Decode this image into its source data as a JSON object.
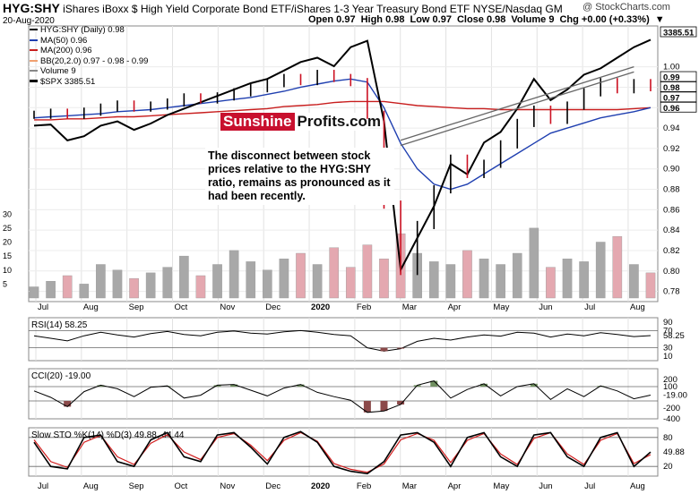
{
  "header": {
    "ticker": "HYG:SHY",
    "description": "iShares iBoxx $ High Yield Corporate Bond ETF/iShares 1-3 Year Treasury Bond ETF NYSE/Nasdaq GM",
    "credit": "@ StockCharts.com",
    "date": "20-Aug-2020",
    "open": "Open 0.97",
    "high": "High 0.98",
    "low": "Low 0.97",
    "close": "Close 0.98",
    "volume": "Volume 9",
    "chg": "Chg +0.00 (+0.33%)"
  },
  "legend": {
    "main": "HYG:SHY (Daily) 0.98",
    "ma50": "MA(50) 0.96",
    "ma200": "MA(200) 0.96",
    "bb": "BB(20,2.0) 0.97 - 0.98 - 0.99",
    "volume": "Volume 9",
    "spx": "$SPX 3385.51"
  },
  "watermark": {
    "part1": "Sunshine",
    "part2": "Profits.com"
  },
  "annotation": "The disconnect between stock prices relative to the HYG:SHY ratio, remains as pronounced as it had been recently.",
  "colors": {
    "ma50": "#1f3fb0",
    "ma200": "#c81e1e",
    "bb": "#f0a070",
    "up": "#000000",
    "down": "#cc1122",
    "volume": "#a8a8a8",
    "volume_red": "#e4a8b0",
    "rsi_neg": "#8b4a4a",
    "cci_pos": "#6f8f5f"
  },
  "chart_data": [
    {
      "type": "line",
      "name": "price_panel",
      "x_ticks": [
        "Jul",
        "Aug",
        "Sep",
        "Oct",
        "Nov",
        "Dec",
        "2020",
        "Feb",
        "Mar",
        "Apr",
        "May",
        "Jun",
        "Jul",
        "Aug"
      ],
      "ylim": [
        0.77,
        1.04
      ],
      "y_ticks": [
        "1.00",
        "0.98",
        "0.96",
        "0.94",
        "0.92",
        "0.90",
        "0.88",
        "0.86",
        "0.84",
        "0.82",
        "0.80",
        "0.78"
      ],
      "volume_ticks": [
        "30",
        "25",
        "20",
        "15",
        "10",
        "5"
      ],
      "last_labels": {
        "spx": "3385.51",
        "bb_upper": "0.99",
        "close": "0.98",
        "bb_lower": "0.97",
        "ma": "0.96"
      },
      "series": [
        {
          "name": "HYG:SHY",
          "values": [
            0.953,
            0.955,
            0.953,
            0.956,
            0.96,
            0.963,
            0.96,
            0.962,
            0.965,
            0.97,
            0.968,
            0.971,
            0.975,
            0.979,
            0.984,
            0.989,
            0.986,
            0.993,
            0.989,
            0.985,
            0.953,
            0.865,
            0.8,
            0.845,
            0.88,
            0.91,
            0.895,
            0.905,
            0.924,
            0.945,
            0.958,
            0.948,
            0.962,
            0.975,
            0.985,
            0.978,
            0.984,
            0.98
          ]
        },
        {
          "name": "$SPX",
          "values": [
            2980,
            2985,
            2910,
            2930,
            2980,
            3000,
            2960,
            2990,
            3030,
            3060,
            3090,
            3120,
            3150,
            3180,
            3200,
            3240,
            3280,
            3300,
            3260,
            3350,
            3380,
            3000,
            2300,
            2450,
            2600,
            2800,
            2750,
            2900,
            2950,
            3060,
            3200,
            3100,
            3150,
            3220,
            3250,
            3300,
            3350,
            3385
          ]
        },
        {
          "name": "MA(50)",
          "values": [
            0.95,
            0.951,
            0.952,
            0.953,
            0.954,
            0.956,
            0.957,
            0.958,
            0.96,
            0.962,
            0.964,
            0.966,
            0.968,
            0.97,
            0.973,
            0.976,
            0.98,
            0.983,
            0.986,
            0.988,
            0.985,
            0.96,
            0.925,
            0.9,
            0.885,
            0.88,
            0.885,
            0.895,
            0.905,
            0.915,
            0.925,
            0.935,
            0.94,
            0.945,
            0.95,
            0.953,
            0.956,
            0.96
          ]
        },
        {
          "name": "MA(200)",
          "values": [
            0.948,
            0.948,
            0.949,
            0.949,
            0.95,
            0.951,
            0.951,
            0.952,
            0.953,
            0.954,
            0.955,
            0.956,
            0.957,
            0.958,
            0.959,
            0.961,
            0.962,
            0.963,
            0.965,
            0.966,
            0.966,
            0.966,
            0.964,
            0.962,
            0.961,
            0.96,
            0.959,
            0.959,
            0.958,
            0.958,
            0.958,
            0.958,
            0.958,
            0.958,
            0.958,
            0.958,
            0.959,
            0.96
          ]
        }
      ],
      "volume": [
        4,
        6,
        8,
        5,
        12,
        10,
        7,
        9,
        11,
        15,
        8,
        12,
        17,
        13,
        10,
        14,
        16,
        12,
        18,
        11,
        19,
        14,
        23,
        16,
        13,
        12,
        17,
        14,
        12,
        16,
        25,
        11,
        14,
        13,
        20,
        22,
        12,
        9
      ]
    },
    {
      "type": "line",
      "name": "RSI(14)",
      "label": "RSI(14) 58.25",
      "ylim": [
        0,
        100
      ],
      "y_ticks": [
        "90",
        "70",
        "58.25",
        "30",
        "10"
      ],
      "ref_lines": [
        70,
        30
      ],
      "values": [
        58,
        52,
        46,
        58,
        66,
        60,
        55,
        63,
        68,
        61,
        58,
        66,
        69,
        64,
        62,
        67,
        70,
        66,
        61,
        58,
        30,
        22,
        28,
        45,
        52,
        48,
        55,
        60,
        57,
        66,
        64,
        55,
        62,
        58,
        65,
        61,
        56,
        58.25
      ]
    },
    {
      "type": "line",
      "name": "CCI(20)",
      "label": "CCI(20) -19.00",
      "ylim": [
        -350,
        350
      ],
      "y_ticks": [
        "200",
        "100",
        "-19.00",
        "-200",
        "-400"
      ],
      "ref_lines": [
        100,
        -100
      ],
      "values": [
        40,
        -50,
        -180,
        30,
        120,
        70,
        -40,
        90,
        110,
        -60,
        -20,
        120,
        130,
        50,
        -30,
        80,
        130,
        20,
        -40,
        -90,
        -260,
        -240,
        -150,
        120,
        180,
        -60,
        60,
        140,
        -30,
        100,
        140,
        -80,
        70,
        -40,
        110,
        40,
        -70,
        -19
      ]
    },
    {
      "type": "line",
      "name": "Slow STO",
      "label": "Slow STO %K(14) %D(3) 49.88, 44.44",
      "ylim": [
        0,
        100
      ],
      "y_ticks": [
        "80",
        "49.88",
        "20"
      ],
      "ref_lines": [
        80,
        20
      ],
      "series": [
        {
          "name": "%K(14)",
          "values": [
            70,
            20,
            15,
            80,
            85,
            30,
            20,
            75,
            90,
            40,
            30,
            85,
            90,
            60,
            25,
            80,
            92,
            70,
            20,
            10,
            5,
            30,
            85,
            90,
            70,
            20,
            80,
            90,
            40,
            20,
            85,
            90,
            40,
            20,
            80,
            90,
            20,
            49.88
          ]
        },
        {
          "name": "%D(3)",
          "values": [
            75,
            30,
            18,
            70,
            84,
            40,
            24,
            68,
            86,
            50,
            34,
            80,
            88,
            64,
            32,
            74,
            90,
            72,
            26,
            14,
            8,
            25,
            75,
            88,
            74,
            28,
            74,
            88,
            46,
            24,
            78,
            90,
            46,
            24,
            74,
            88,
            26,
            44.44
          ]
        }
      ]
    }
  ]
}
